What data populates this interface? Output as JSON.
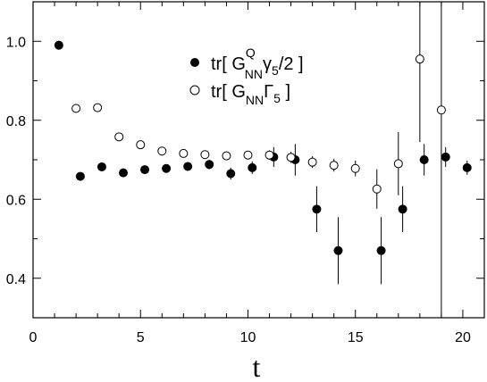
{
  "chart_data": {
    "type": "scatter",
    "title": "",
    "xlabel": "t",
    "ylabel": "",
    "xlim": [
      0,
      21
    ],
    "ylim": [
      0.3,
      1.1
    ],
    "xticks": [
      "0",
      "5",
      "10",
      "15",
      "20"
    ],
    "yticks": [
      "0.4",
      "0.6",
      "0.8",
      "1.0"
    ],
    "legend_position": "top-right",
    "series": [
      {
        "name": "tr[ G^Q_NN γ5/2 ]",
        "marker": "filled-circle",
        "points": [
          {
            "x": 1.2,
            "y": 0.99,
            "err": 0.0
          },
          {
            "x": 2.2,
            "y": 0.658,
            "err": 0.008
          },
          {
            "x": 3.2,
            "y": 0.682,
            "err": 0.008
          },
          {
            "x": 4.2,
            "y": 0.667,
            "err": 0.008
          },
          {
            "x": 5.2,
            "y": 0.675,
            "err": 0.008
          },
          {
            "x": 6.2,
            "y": 0.678,
            "err": 0.009
          },
          {
            "x": 7.2,
            "y": 0.683,
            "err": 0.01
          },
          {
            "x": 8.2,
            "y": 0.688,
            "err": 0.012
          },
          {
            "x": 9.2,
            "y": 0.665,
            "err": 0.015
          },
          {
            "x": 10.2,
            "y": 0.68,
            "err": 0.016
          },
          {
            "x": 11.2,
            "y": 0.707,
            "err": 0.025
          },
          {
            "x": 12.2,
            "y": 0.7,
            "err": 0.04
          },
          {
            "x": 13.2,
            "y": 0.575,
            "err": 0.058
          },
          {
            "x": 14.2,
            "y": 0.47,
            "err": 0.085
          },
          {
            "x": 16.2,
            "y": 0.47,
            "err": 0.085
          },
          {
            "x": 17.2,
            "y": 0.575,
            "err": 0.058
          },
          {
            "x": 18.2,
            "y": 0.7,
            "err": 0.04
          },
          {
            "x": 19.2,
            "y": 0.707,
            "err": 0.025
          },
          {
            "x": 20.2,
            "y": 0.68,
            "err": 0.018
          }
        ]
      },
      {
        "name": "tr[ G_NN Γ5 ]",
        "marker": "open-circle",
        "points": [
          {
            "x": 2.0,
            "y": 0.83,
            "err": 0.006
          },
          {
            "x": 3.0,
            "y": 0.832,
            "err": 0.006
          },
          {
            "x": 4.0,
            "y": 0.758,
            "err": 0.006
          },
          {
            "x": 5.0,
            "y": 0.738,
            "err": 0.006
          },
          {
            "x": 6.0,
            "y": 0.722,
            "err": 0.007
          },
          {
            "x": 7.0,
            "y": 0.716,
            "err": 0.007
          },
          {
            "x": 8.0,
            "y": 0.713,
            "err": 0.008
          },
          {
            "x": 9.0,
            "y": 0.71,
            "err": 0.009
          },
          {
            "x": 10.0,
            "y": 0.712,
            "err": 0.01
          },
          {
            "x": 11.0,
            "y": 0.712,
            "err": 0.012
          },
          {
            "x": 12.0,
            "y": 0.706,
            "err": 0.014
          },
          {
            "x": 13.0,
            "y": 0.694,
            "err": 0.015
          },
          {
            "x": 14.0,
            "y": 0.686,
            "err": 0.016
          },
          {
            "x": 15.0,
            "y": 0.678,
            "err": 0.02
          },
          {
            "x": 16.0,
            "y": 0.626,
            "err": 0.05
          },
          {
            "x": 17.0,
            "y": 0.69,
            "err": 0.08
          },
          {
            "x": 18.0,
            "y": 0.955,
            "err": 0.21
          },
          {
            "x": 19.0,
            "y": 0.826,
            "err": 0.56
          }
        ]
      }
    ]
  },
  "legend": {
    "entry1": {
      "base": "tr[ G",
      "sup": "Q",
      "sub": "NN",
      "after": "γ",
      "sub2": "5",
      "tail": "/2 ]"
    },
    "entry2": {
      "base": "tr[ G",
      "sub": "NN",
      "after": "Γ",
      "sub2": "5",
      "tail": " ]"
    }
  }
}
